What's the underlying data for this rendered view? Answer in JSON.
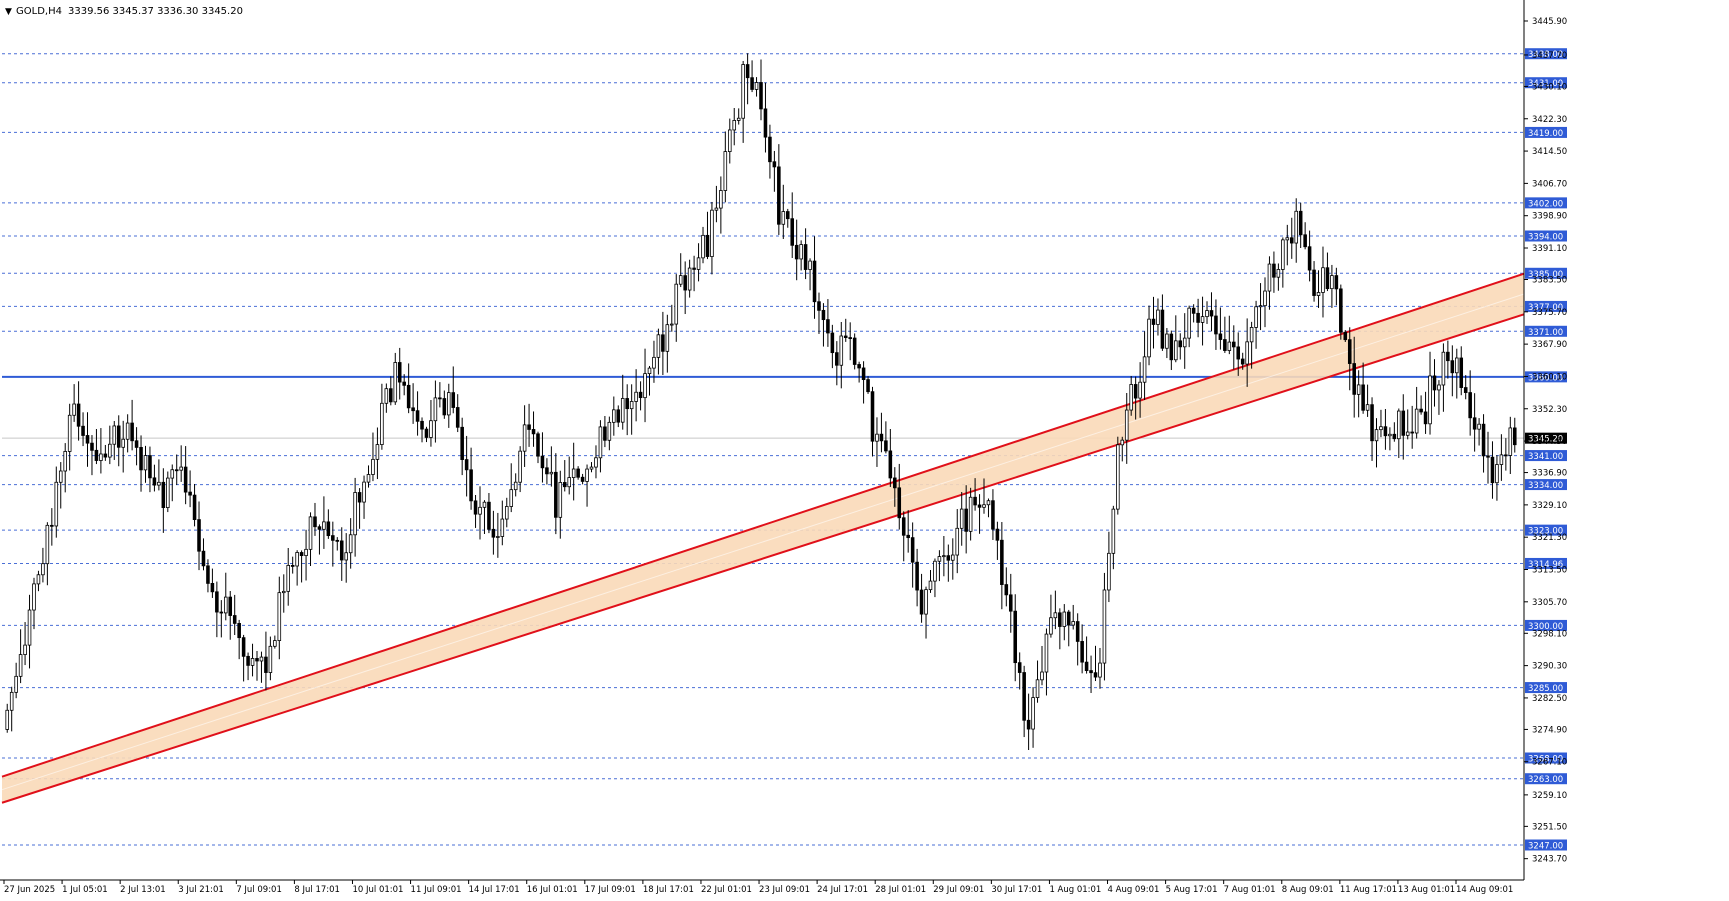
{
  "header": {
    "symbol": "GOLD,H4",
    "ohlc": "3339.56 3345.37 3336.30 3345.20"
  },
  "colors": {
    "bull": "#ffffff",
    "bear": "#000000",
    "wick": "#000000",
    "level_line": "#4a6fd6",
    "key_level": "#2f5bd6",
    "channel_line": "#e0101a",
    "channel_fill": "#f9d9b8",
    "current_price_line": "#c8c8c8"
  },
  "chart_data": {
    "type": "candlestick",
    "ylim": [
      3240,
      3450
    ],
    "y_ticks": [
      "3445.90",
      "3437.70",
      "3430.10",
      "3422.30",
      "3414.50",
      "3406.70",
      "3398.90",
      "3391.10",
      "3383.50",
      "3375.70",
      "3367.90",
      "3360.10",
      "3352.30",
      "3344.50",
      "3336.90",
      "3329.10",
      "3321.30",
      "3313.50",
      "3305.70",
      "3298.10",
      "3290.30",
      "3282.50",
      "3274.90",
      "3267.10",
      "3259.10",
      "3251.50",
      "3243.70"
    ],
    "x_labels": [
      "27 Jun 2025",
      "1 Jul 05:01",
      "2 Jul 13:01",
      "3 Jul 21:01",
      "7 Jul 09:01",
      "8 Jul 17:01",
      "10 Jul 01:01",
      "11 Jul 09:01",
      "14 Jul 17:01",
      "16 Jul 01:01",
      "17 Jul 09:01",
      "18 Jul 17:01",
      "22 Jul 01:01",
      "23 Jul 09:01",
      "24 Jul 17:01",
      "28 Jul 01:01",
      "29 Jul 09:01",
      "30 Jul 17:01",
      "1 Aug 01:01",
      "4 Aug 09:01",
      "5 Aug 17:01",
      "7 Aug 01:01",
      "8 Aug 09:01",
      "11 Aug 17:01",
      "13 Aug 01:01",
      "14 Aug 09:01"
    ],
    "levels": [
      3438.0,
      3431.0,
      3419.0,
      3402.0,
      3394.0,
      3385.0,
      3377.0,
      3371.0,
      3341.0,
      3334.0,
      3323.0,
      3314.96,
      3300.0,
      3285.0,
      3268.0,
      3263.0,
      3247.0
    ],
    "level_labels": [
      "3438.00",
      "3431.00",
      "3419.00",
      "3402.00",
      "3394.00",
      "3385.00",
      "3377.00",
      "3371.00",
      "3341.00",
      "3334.00",
      "3323.00",
      "3314.96",
      "3300.00",
      "3285.00",
      "3268.00",
      "3263.00",
      "3247.00"
    ],
    "key_level": 3360.0,
    "key_level_label": "3360.00",
    "current_price": 3345.2,
    "current_price_label": "3345.20",
    "channel": {
      "upper": [
        [
          0,
          3263.5
        ],
        [
          1,
          3384.9
        ]
      ],
      "lower": [
        [
          0,
          3257.2
        ],
        [
          1,
          3375.1
        ]
      ]
    },
    "anchors": [
      [
        0,
        3275
      ],
      [
        4,
        3295
      ],
      [
        10,
        3320
      ],
      [
        16,
        3355
      ],
      [
        22,
        3340
      ],
      [
        28,
        3350
      ],
      [
        34,
        3330
      ],
      [
        40,
        3338
      ],
      [
        46,
        3310
      ],
      [
        52,
        3300
      ],
      [
        58,
        3288
      ],
      [
        64,
        3312
      ],
      [
        70,
        3325
      ],
      [
        76,
        3318
      ],
      [
        82,
        3340
      ],
      [
        88,
        3362
      ],
      [
        94,
        3345
      ],
      [
        100,
        3357
      ],
      [
        106,
        3328
      ],
      [
        112,
        3322
      ],
      [
        118,
        3350
      ],
      [
        124,
        3330
      ],
      [
        130,
        3336
      ],
      [
        136,
        3350
      ],
      [
        142,
        3355
      ],
      [
        148,
        3368
      ],
      [
        154,
        3388
      ],
      [
        158,
        3392
      ],
      [
        162,
        3410
      ],
      [
        166,
        3432
      ],
      [
        170,
        3425
      ],
      [
        174,
        3400
      ],
      [
        180,
        3388
      ],
      [
        186,
        3365
      ],
      [
        190,
        3368
      ],
      [
        194,
        3352
      ],
      [
        198,
        3338
      ],
      [
        202,
        3325
      ],
      [
        206,
        3305
      ],
      [
        210,
        3318
      ],
      [
        214,
        3322
      ],
      [
        218,
        3330
      ],
      [
        222,
        3325
      ],
      [
        226,
        3300
      ],
      [
        230,
        3275
      ],
      [
        234,
        3295
      ],
      [
        238,
        3305
      ],
      [
        242,
        3290
      ],
      [
        246,
        3292
      ],
      [
        250,
        3345
      ],
      [
        254,
        3358
      ],
      [
        258,
        3375
      ],
      [
        262,
        3366
      ],
      [
        266,
        3375
      ],
      [
        270,
        3376
      ],
      [
        274,
        3368
      ],
      [
        278,
        3362
      ],
      [
        282,
        3376
      ],
      [
        286,
        3390
      ],
      [
        290,
        3398
      ],
      [
        294,
        3380
      ],
      [
        298,
        3385
      ],
      [
        302,
        3360
      ],
      [
        306,
        3350
      ],
      [
        310,
        3342
      ],
      [
        314,
        3350
      ],
      [
        318,
        3350
      ],
      [
        322,
        3362
      ],
      [
        326,
        3365
      ],
      [
        330,
        3348
      ],
      [
        334,
        3337
      ],
      [
        338,
        3345
      ]
    ],
    "n_candles": 339,
    "seed": 20250815
  }
}
